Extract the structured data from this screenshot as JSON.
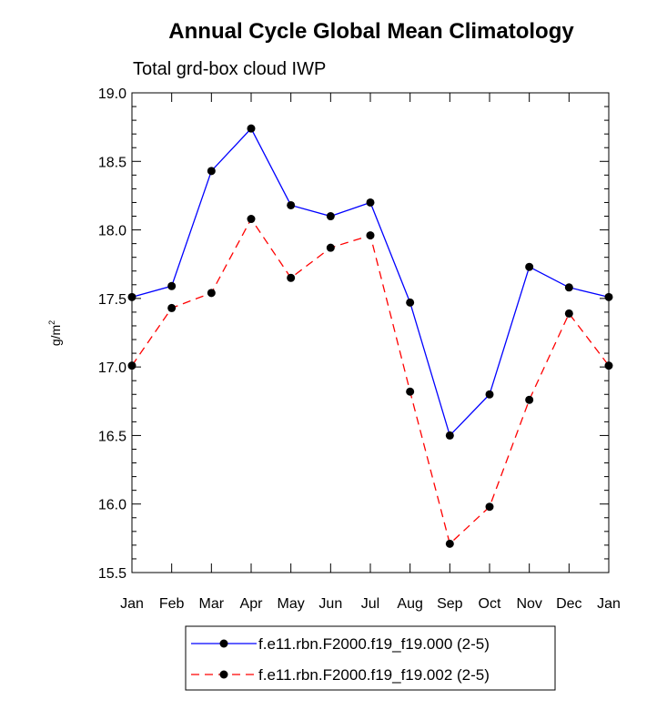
{
  "chart_data": {
    "type": "line",
    "title": "Annual Cycle Global Mean Climatology",
    "subtitle": "Total grd-box cloud IWP",
    "ylabel": "g/m",
    "ylabel_sup": "2",
    "ylim": [
      15.5,
      19.0
    ],
    "yticks": [
      "19.0",
      "18.5",
      "18.0",
      "17.5",
      "17.0",
      "16.5",
      "16.0",
      "15.5"
    ],
    "ytick_values": [
      19.0,
      18.5,
      18.0,
      17.5,
      17.0,
      16.5,
      16.0,
      15.5
    ],
    "categories": [
      "Jan",
      "Feb",
      "Mar",
      "Apr",
      "May",
      "Jun",
      "Jul",
      "Aug",
      "Sep",
      "Oct",
      "Nov",
      "Dec",
      "Jan"
    ],
    "series": [
      {
        "name": "f.e11.rbn.F2000.f19_f19.000 (2-5)",
        "color": "#0000ff",
        "dash": "solid",
        "values": [
          17.51,
          17.59,
          18.43,
          18.74,
          18.18,
          18.1,
          18.2,
          17.47,
          16.5,
          16.8,
          17.73,
          17.58,
          17.51
        ]
      },
      {
        "name": "f.e11.rbn.F2000.f19_f19.002 (2-5)",
        "color": "#ff0000",
        "dash": "dashed",
        "values": [
          17.01,
          17.43,
          17.54,
          18.08,
          17.65,
          17.87,
          17.96,
          16.82,
          15.71,
          15.98,
          16.76,
          17.39,
          17.01
        ]
      }
    ],
    "legend_position": "bottom-center",
    "grid": false
  }
}
